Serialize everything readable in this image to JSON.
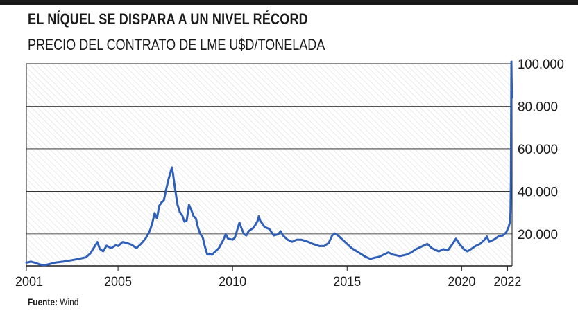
{
  "header": {
    "title": "EL NÍQUEL SE DISPARA A UN NIVEL RÉCORD",
    "subtitle": "PRECIO DEL CONTRATO DE LME U$D/TONELADA"
  },
  "source": {
    "label": "Fuente:",
    "value": "Wind"
  },
  "colors": {
    "line": "#2f5fb7",
    "grid": "#1a1a1a",
    "hatch": "#d9d9d9",
    "text": "#1a1a1a"
  },
  "chart_data": {
    "type": "line",
    "title": "EL NÍQUEL SE DISPARA A UN NIVEL RÉCORD",
    "subtitle": "PRECIO DEL CONTRATO DE LME U$D/TONELADA",
    "xlabel": "",
    "ylabel": "",
    "xlim": [
      2001,
      2022.2
    ],
    "ylim": [
      5000,
      100000
    ],
    "x_ticks": [
      2001,
      2005,
      2010,
      2015,
      2020,
      2022
    ],
    "y_ticks": [
      20000,
      40000,
      60000,
      80000,
      100000
    ],
    "y_tick_labels": [
      "20.000",
      "40.000",
      "60.000",
      "80.000",
      "100.000"
    ],
    "grid": "horizontal",
    "background": "hatched",
    "series": [
      {
        "name": "",
        "color": "#2f5fb7",
        "points": [
          [
            2001.0,
            6500
          ],
          [
            2001.2,
            7000
          ],
          [
            2001.4,
            6400
          ],
          [
            2001.6,
            5600
          ],
          [
            2001.8,
            5300
          ],
          [
            2002.0,
            5800
          ],
          [
            2002.3,
            6600
          ],
          [
            2002.6,
            7000
          ],
          [
            2003.0,
            7700
          ],
          [
            2003.3,
            8300
          ],
          [
            2003.6,
            9000
          ],
          [
            2003.8,
            11000
          ],
          [
            2004.0,
            14500
          ],
          [
            2004.1,
            16200
          ],
          [
            2004.2,
            13000
          ],
          [
            2004.35,
            11800
          ],
          [
            2004.5,
            14500
          ],
          [
            2004.7,
            13300
          ],
          [
            2004.9,
            14700
          ],
          [
            2005.0,
            14300
          ],
          [
            2005.2,
            16200
          ],
          [
            2005.4,
            15700
          ],
          [
            2005.6,
            14900
          ],
          [
            2005.8,
            13300
          ],
          [
            2006.0,
            15300
          ],
          [
            2006.2,
            17800
          ],
          [
            2006.4,
            21800
          ],
          [
            2006.5,
            25300
          ],
          [
            2006.6,
            29800
          ],
          [
            2006.7,
            27300
          ],
          [
            2006.8,
            33200
          ],
          [
            2006.9,
            34800
          ],
          [
            2007.0,
            35800
          ],
          [
            2007.1,
            40800
          ],
          [
            2007.2,
            45500
          ],
          [
            2007.3,
            49300
          ],
          [
            2007.35,
            51200
          ],
          [
            2007.4,
            48300
          ],
          [
            2007.5,
            40500
          ],
          [
            2007.6,
            33700
          ],
          [
            2007.7,
            30200
          ],
          [
            2007.8,
            28800
          ],
          [
            2007.9,
            25800
          ],
          [
            2008.0,
            26300
          ],
          [
            2008.1,
            33700
          ],
          [
            2008.2,
            31200
          ],
          [
            2008.3,
            28300
          ],
          [
            2008.4,
            27300
          ],
          [
            2008.5,
            22700
          ],
          [
            2008.6,
            19900
          ],
          [
            2008.7,
            18300
          ],
          [
            2008.8,
            13800
          ],
          [
            2008.9,
            10300
          ],
          [
            2009.0,
            10800
          ],
          [
            2009.1,
            10200
          ],
          [
            2009.2,
            11300
          ],
          [
            2009.4,
            13300
          ],
          [
            2009.6,
            17300
          ],
          [
            2009.7,
            19900
          ],
          [
            2009.8,
            17800
          ],
          [
            2010.0,
            17300
          ],
          [
            2010.1,
            18300
          ],
          [
            2010.2,
            21800
          ],
          [
            2010.3,
            25300
          ],
          [
            2010.4,
            22300
          ],
          [
            2010.5,
            19900
          ],
          [
            2010.6,
            19300
          ],
          [
            2010.7,
            21300
          ],
          [
            2010.9,
            22800
          ],
          [
            2011.0,
            24300
          ],
          [
            2011.1,
            26300
          ],
          [
            2011.15,
            28300
          ],
          [
            2011.2,
            26300
          ],
          [
            2011.4,
            23300
          ],
          [
            2011.6,
            22300
          ],
          [
            2011.8,
            19300
          ],
          [
            2012.0,
            19900
          ],
          [
            2012.1,
            21300
          ],
          [
            2012.2,
            19300
          ],
          [
            2012.4,
            17300
          ],
          [
            2012.6,
            16300
          ],
          [
            2012.8,
            17300
          ],
          [
            2013.0,
            17300
          ],
          [
            2013.3,
            16300
          ],
          [
            2013.5,
            15300
          ],
          [
            2013.8,
            14300
          ],
          [
            2014.0,
            14300
          ],
          [
            2014.2,
            15800
          ],
          [
            2014.35,
            19300
          ],
          [
            2014.45,
            20300
          ],
          [
            2014.6,
            19300
          ],
          [
            2014.8,
            17300
          ],
          [
            2015.0,
            15300
          ],
          [
            2015.2,
            13300
          ],
          [
            2015.5,
            11300
          ],
          [
            2015.8,
            9300
          ],
          [
            2016.0,
            8300
          ],
          [
            2016.2,
            8800
          ],
          [
            2016.4,
            9300
          ],
          [
            2016.6,
            10300
          ],
          [
            2016.8,
            11300
          ],
          [
            2017.0,
            10300
          ],
          [
            2017.3,
            9600
          ],
          [
            2017.6,
            10300
          ],
          [
            2017.8,
            11300
          ],
          [
            2018.0,
            12800
          ],
          [
            2018.3,
            14300
          ],
          [
            2018.5,
            15300
          ],
          [
            2018.7,
            13300
          ],
          [
            2019.0,
            11800
          ],
          [
            2019.2,
            12800
          ],
          [
            2019.4,
            12300
          ],
          [
            2019.6,
            15300
          ],
          [
            2019.75,
            17800
          ],
          [
            2019.9,
            15300
          ],
          [
            2020.1,
            12800
          ],
          [
            2020.25,
            11800
          ],
          [
            2020.4,
            12800
          ],
          [
            2020.6,
            14300
          ],
          [
            2020.8,
            15300
          ],
          [
            2021.0,
            17300
          ],
          [
            2021.1,
            18800
          ],
          [
            2021.2,
            16300
          ],
          [
            2021.4,
            17300
          ],
          [
            2021.6,
            18800
          ],
          [
            2021.8,
            19300
          ],
          [
            2021.95,
            20800
          ],
          [
            2022.05,
            23300
          ],
          [
            2022.1,
            25300
          ],
          [
            2022.13,
            30000
          ],
          [
            2022.15,
            45000
          ],
          [
            2022.17,
            101000
          ],
          [
            2022.19,
            84000
          ],
          [
            2022.2,
            87000
          ]
        ]
      }
    ]
  }
}
